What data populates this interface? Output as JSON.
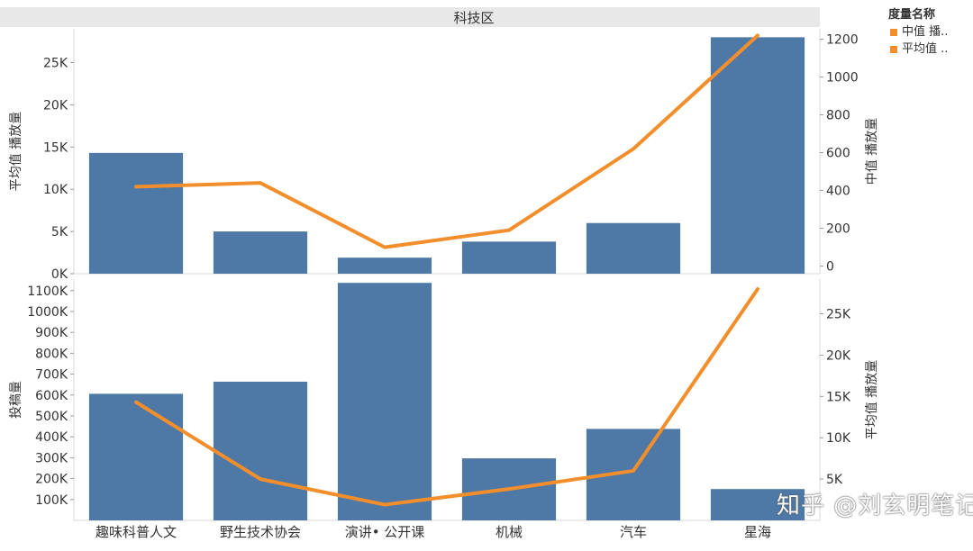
{
  "colors": {
    "bar": "#4e79a7",
    "line": "#f28e2b",
    "header_bg": "#e8e8e8",
    "grid": "#d8d8d8",
    "text": "#333333"
  },
  "header": {
    "title": "科技区"
  },
  "legend": {
    "title": "度量名称",
    "items": [
      {
        "label": "中值 播..",
        "color": "#f28e2b"
      },
      {
        "label": "平均值 ..",
        "color": "#f28e2b"
      }
    ]
  },
  "watermark": {
    "text": "知乎 @刘玄明笔记"
  },
  "chart_data": [
    {
      "type": "bar",
      "panel": "top",
      "categories": [
        "趣味科普人文",
        "野生技术协会",
        "演讲• 公开课",
        "机械",
        "汽车",
        "星海"
      ],
      "series": [
        {
          "name": "平均值 播放量",
          "type": "bar",
          "axis": "left",
          "values": [
            14300,
            5000,
            1900,
            3800,
            6000,
            28000
          ]
        },
        {
          "name": "中值 播放量",
          "type": "line",
          "axis": "right",
          "values": [
            420,
            440,
            100,
            190,
            620,
            1220
          ]
        }
      ],
      "y_left": {
        "label": "平均值 播放量",
        "min": 0,
        "max": 29000,
        "ticks": [
          0,
          5000,
          10000,
          15000,
          20000,
          25000
        ],
        "tick_labels": [
          "0K",
          "5K",
          "10K",
          "15K",
          "20K",
          "25K"
        ]
      },
      "y_right": {
        "label": "中值 播放量",
        "min": -40,
        "max": 1255,
        "ticks": [
          0,
          200,
          400,
          600,
          800,
          1000,
          1200
        ],
        "tick_labels": [
          "0",
          "200",
          "400",
          "600",
          "800",
          "1000",
          "1200"
        ]
      }
    },
    {
      "type": "bar",
      "panel": "bottom",
      "categories": [
        "趣味科普人文",
        "野生技术协会",
        "演讲• 公开课",
        "机械",
        "汽车",
        "星海"
      ],
      "series": [
        {
          "name": "投稿量",
          "type": "bar",
          "axis": "left",
          "values": [
            606000,
            664000,
            1137000,
            297000,
            438000,
            150000
          ]
        },
        {
          "name": "平均值 播放量",
          "type": "line",
          "axis": "right",
          "values": [
            14300,
            5000,
            1900,
            3800,
            6000,
            28000
          ]
        }
      ],
      "y_left": {
        "label": "投稿量",
        "min": 0,
        "max": 1155000,
        "ticks": [
          100000,
          200000,
          300000,
          400000,
          500000,
          600000,
          700000,
          800000,
          900000,
          1000000,
          1100000
        ],
        "tick_labels": [
          "100K",
          "200K",
          "300K",
          "400K",
          "500K",
          "600K",
          "700K",
          "800K",
          "900K",
          "1000K",
          "1100K"
        ]
      },
      "y_right": {
        "label": "平均值 播放量",
        "min": 0,
        "max": 29200,
        "ticks": [
          5000,
          10000,
          15000,
          20000,
          25000
        ],
        "tick_labels": [
          "5K",
          "10K",
          "15K",
          "20K",
          "25K"
        ]
      }
    }
  ]
}
